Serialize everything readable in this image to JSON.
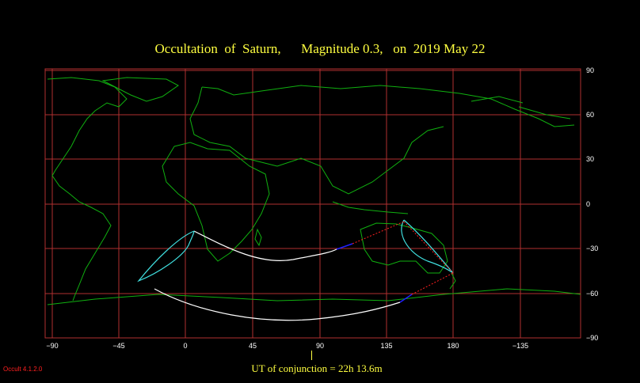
{
  "title": "Occultation  of  Saturn,      Magnitude 0.3,   on  2019 May 22",
  "map": {
    "lon_ticks": [
      "−90",
      "−45",
      "0",
      "45",
      "90",
      "135",
      "180",
      "−135"
    ],
    "lat_ticks": [
      "90",
      "60",
      "30",
      "0",
      "−30",
      "−60",
      "−90"
    ],
    "colors": {
      "grid": "#b03030",
      "coast": "#10b010",
      "daylight_limit": "#ffffff",
      "rise_set": "#40e0e0",
      "visible_path": "#2020ff",
      "extension": "#ff2020"
    }
  },
  "conjunction_label": "UT of conjunction = 22h 13.6m",
  "version": "Occult 4.1.2.0"
}
